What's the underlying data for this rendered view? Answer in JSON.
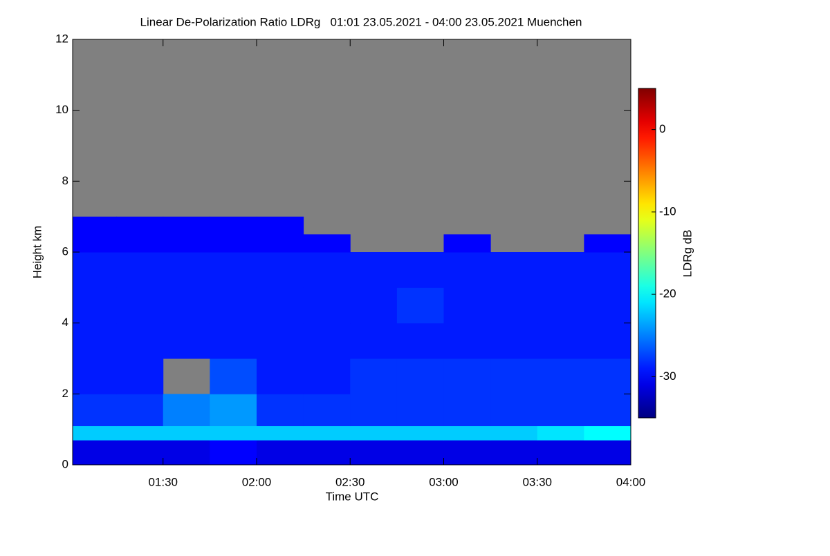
{
  "chart_data": {
    "type": "heatmap",
    "title": "Linear De-Polarization Ratio LDRg   01:01 23.05.2021 - 04:00 23.05.2021 Muenchen",
    "x_label": "Time UTC",
    "y_label": "Height km",
    "colorbar_label": "LDRg dB",
    "xlim": [
      1.0167,
      4
    ],
    "xticks": [
      {
        "value": 1.5,
        "label": "01:30"
      },
      {
        "value": 2,
        "label": "02:00"
      },
      {
        "value": 2.5,
        "label": "02:30"
      },
      {
        "value": 3,
        "label": "03:00"
      },
      {
        "value": 3.5,
        "label": "03:30"
      },
      {
        "value": 4,
        "label": "04:00"
      }
    ],
    "ylim": [
      0,
      12
    ],
    "yticks": [
      0,
      2,
      4,
      6,
      8,
      10,
      12
    ],
    "zlim": [
      -35,
      5
    ],
    "zticks": [
      0,
      -10,
      -20,
      -30
    ],
    "colormap": "jet",
    "null_color": "#808080",
    "xbins": [
      1.0167,
      1.25,
      1.5,
      1.75,
      2,
      2.25,
      2.5,
      2.75,
      3,
      3.25,
      3.5,
      3.75,
      4
    ],
    "ybins": [
      0,
      0.7,
      1.1,
      2,
      3,
      4,
      5,
      6,
      6.5,
      7,
      12
    ],
    "z": [
      [
        -31,
        -31,
        -31,
        -30,
        -31,
        -31,
        -31,
        -31,
        -31,
        -31,
        -31,
        -31
      ],
      [
        -22,
        -22,
        -22,
        -22,
        -22,
        -22,
        -22,
        -22,
        -22,
        -22,
        -21,
        -20
      ],
      [
        -28,
        -28,
        -25,
        -24,
        -28,
        -28,
        -28,
        -28,
        -28,
        -28,
        -28,
        -28
      ],
      [
        -29,
        -29,
        null,
        -27,
        -29,
        -29,
        -28,
        -28,
        -28,
        -28,
        -28,
        -28
      ],
      [
        -29,
        -29,
        -29,
        -29,
        -29,
        -29,
        -29,
        -29,
        -29,
        -29,
        -29,
        -29
      ],
      [
        -29,
        -29,
        -29,
        -29,
        -29,
        -29,
        -29,
        -28,
        -29,
        -29,
        -29,
        -29
      ],
      [
        -29,
        -29,
        -29,
        -29,
        -29,
        -29,
        -29,
        -29,
        -29,
        -29,
        -29,
        -29
      ],
      [
        -30,
        -30,
        -30,
        -30,
        -30,
        -30,
        null,
        null,
        -30,
        null,
        null,
        -30
      ],
      [
        -30,
        -30,
        -30,
        -30,
        -30,
        null,
        null,
        null,
        null,
        null,
        null,
        null
      ],
      [
        null,
        null,
        null,
        null,
        null,
        null,
        null,
        null,
        null,
        null,
        null,
        null
      ]
    ]
  }
}
